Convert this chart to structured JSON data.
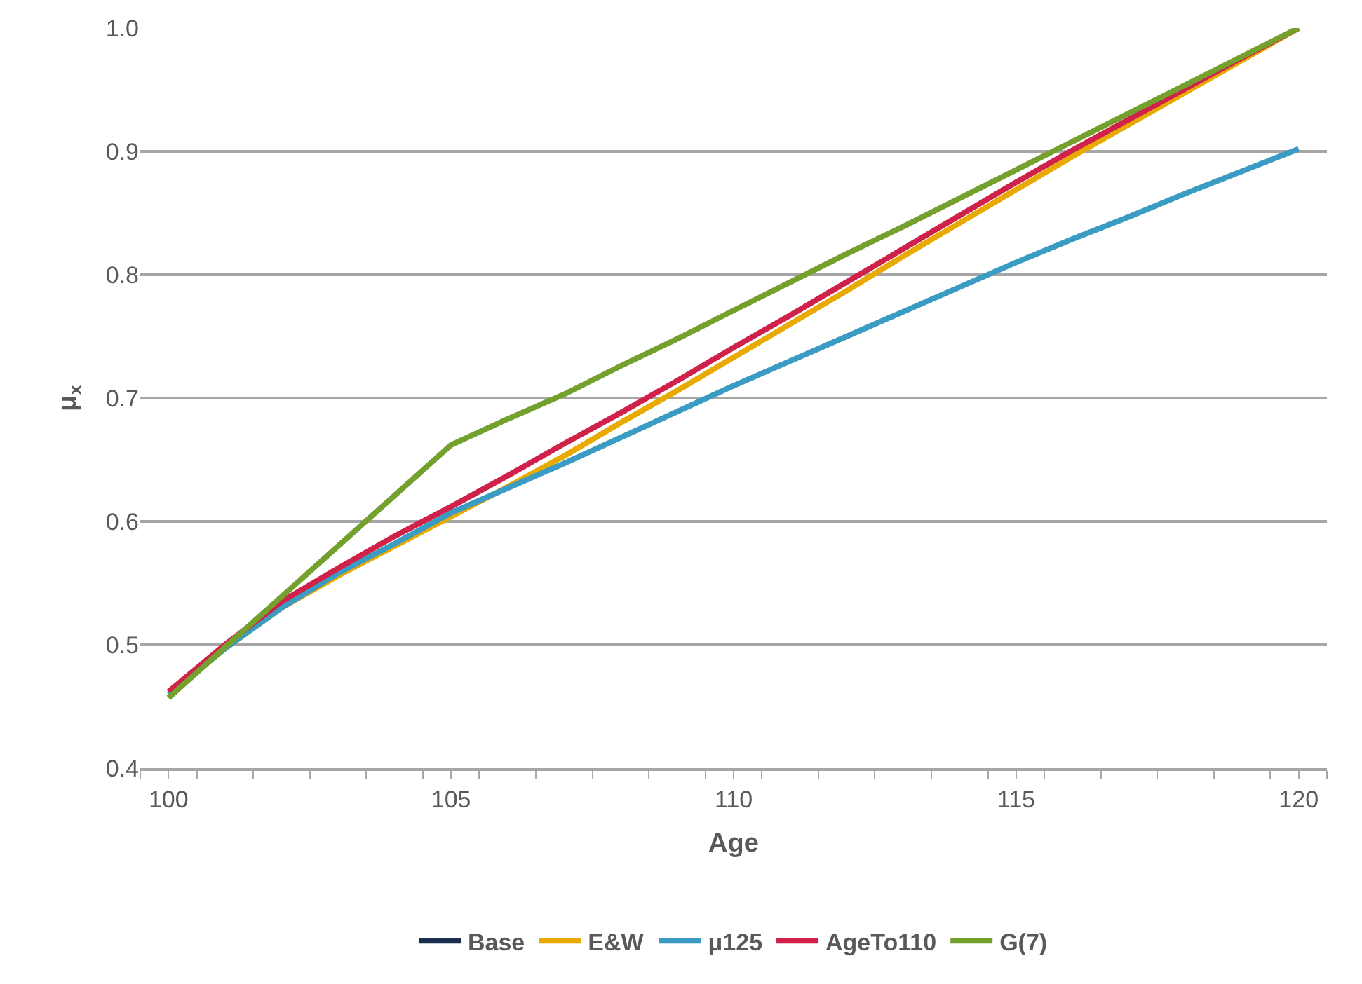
{
  "chart_data": {
    "type": "line",
    "xlabel": "Age",
    "ylabel": "μ$_{x}$",
    "x": [
      100,
      101,
      102,
      103,
      104,
      105,
      106,
      107,
      108,
      109,
      110,
      111,
      112,
      113,
      114,
      115,
      116,
      117,
      118,
      119,
      120
    ],
    "series": [
      {
        "name": "Base",
        "color": "#1a2f4f",
        "values": [
          null,
          null,
          null,
          null,
          null,
          null,
          null,
          null,
          null,
          null,
          null,
          null,
          null,
          null,
          null,
          null,
          null,
          null,
          null,
          null,
          null
        ]
      },
      {
        "name": "E&W",
        "color": "#e8a900",
        "values": [
          0.46,
          0.497,
          0.53,
          0.556,
          0.58,
          0.604,
          0.628,
          0.653,
          0.68,
          0.706,
          0.733,
          0.76,
          0.787,
          0.815,
          0.842,
          0.869,
          0.896,
          0.922,
          0.948,
          0.974,
          1.0
        ]
      },
      {
        "name": "μ125",
        "color": "#3a9cc3",
        "values": [
          0.46,
          0.497,
          0.53,
          0.558,
          0.582,
          0.607,
          0.627,
          0.647,
          0.668,
          0.689,
          0.71,
          0.73,
          0.75,
          0.77,
          0.79,
          0.81,
          0.829,
          0.847,
          0.866,
          0.884,
          0.902
        ]
      },
      {
        "name": "AgeTo110",
        "color": "#d0214a",
        "values": [
          0.462,
          0.5,
          0.535,
          0.562,
          0.588,
          0.612,
          0.637,
          0.663,
          0.688,
          0.714,
          0.741,
          0.767,
          0.794,
          0.821,
          0.848,
          0.875,
          0.901,
          0.926,
          0.951,
          0.976,
          1.0
        ]
      },
      {
        "name": "G(7)",
        "color": "#74a12e",
        "values": [
          0.457,
          0.498,
          0.539,
          0.58,
          0.621,
          0.662,
          0.683,
          0.703,
          0.726,
          0.748,
          0.771,
          0.794,
          0.817,
          0.839,
          0.862,
          0.885,
          0.908,
          0.931,
          0.954,
          0.977,
          1.0
        ]
      }
    ],
    "xlim": [
      99.5,
      120.5
    ],
    "xticks": [
      100,
      105,
      110,
      115,
      120
    ],
    "ylim": [
      0.4,
      1.0
    ],
    "yticks": [
      {
        "value": 0.4,
        "label": "0.4"
      },
      {
        "value": 0.5,
        "label": "0.5"
      },
      {
        "value": 0.6,
        "label": "0.6"
      },
      {
        "value": 0.7,
        "label": "0.7"
      },
      {
        "value": 0.8,
        "label": "0.8"
      },
      {
        "value": 0.9,
        "label": "0.9"
      },
      {
        "value": 1.0,
        "label": "1.0"
      }
    ],
    "grid": "y",
    "legend": "bottom",
    "marker": "none",
    "line_style": "solid"
  }
}
